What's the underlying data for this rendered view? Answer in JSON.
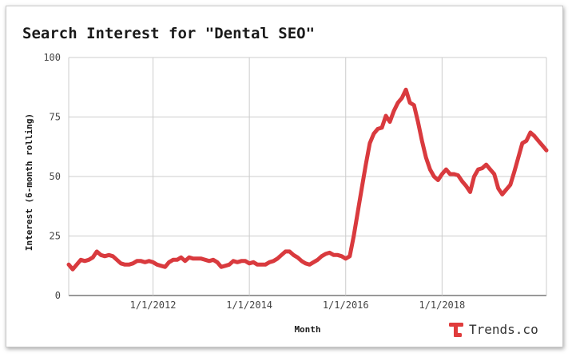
{
  "chart_data": {
    "type": "line",
    "title": "Search Interest for \"Dental SEO\"",
    "xlabel": "Month",
    "ylabel": "Interest (6-month rolling)",
    "ylim": [
      0,
      100
    ],
    "y_ticks": [
      "0",
      "25",
      "50",
      "75",
      "100"
    ],
    "x_ticks": [
      {
        "label": "1/1/2012",
        "x": "2012-01"
      },
      {
        "label": "1/1/2014",
        "x": "2014-01"
      },
      {
        "label": "1/1/2016",
        "x": "2016-01"
      },
      {
        "label": "1/1/2018",
        "x": "2018-01"
      }
    ],
    "xlim": [
      "2010-04",
      "2020-03"
    ],
    "grid": true,
    "legend": "none",
    "line_color": "#d93a3e",
    "x": [
      "2010-04",
      "2010-05",
      "2010-06",
      "2010-07",
      "2010-08",
      "2010-09",
      "2010-10",
      "2010-11",
      "2010-12",
      "2011-01",
      "2011-02",
      "2011-03",
      "2011-04",
      "2011-05",
      "2011-06",
      "2011-07",
      "2011-08",
      "2011-09",
      "2011-10",
      "2011-11",
      "2011-12",
      "2012-01",
      "2012-02",
      "2012-03",
      "2012-04",
      "2012-05",
      "2012-06",
      "2012-07",
      "2012-08",
      "2012-09",
      "2012-10",
      "2012-11",
      "2012-12",
      "2013-01",
      "2013-02",
      "2013-03",
      "2013-04",
      "2013-05",
      "2013-06",
      "2013-07",
      "2013-08",
      "2013-09",
      "2013-10",
      "2013-11",
      "2013-12",
      "2014-01",
      "2014-02",
      "2014-03",
      "2014-04",
      "2014-05",
      "2014-06",
      "2014-07",
      "2014-08",
      "2014-09",
      "2014-10",
      "2014-11",
      "2014-12",
      "2015-01",
      "2015-02",
      "2015-03",
      "2015-04",
      "2015-05",
      "2015-06",
      "2015-07",
      "2015-08",
      "2015-09",
      "2015-10",
      "2015-11",
      "2015-12",
      "2016-01",
      "2016-02",
      "2016-03",
      "2016-04",
      "2016-05",
      "2016-06",
      "2016-07",
      "2016-08",
      "2016-09",
      "2016-10",
      "2016-11",
      "2016-12",
      "2017-01",
      "2017-02",
      "2017-03",
      "2017-04",
      "2017-05",
      "2017-06",
      "2017-07",
      "2017-08",
      "2017-09",
      "2017-10",
      "2017-11",
      "2017-12",
      "2018-01",
      "2018-02",
      "2018-03",
      "2018-04",
      "2018-05",
      "2018-06",
      "2018-07",
      "2018-08",
      "2018-09",
      "2018-10",
      "2018-11",
      "2018-12",
      "2019-01",
      "2019-02",
      "2019-03",
      "2019-04",
      "2019-05",
      "2019-06",
      "2019-07",
      "2019-08",
      "2019-09",
      "2019-10",
      "2019-11",
      "2019-12",
      "2020-01",
      "2020-02",
      "2020-03"
    ],
    "series": [
      {
        "values": [
          13,
          11,
          13,
          15,
          14.5,
          15,
          16,
          18.5,
          17,
          16.5,
          17,
          16.5,
          15,
          13.5,
          13,
          13,
          13.5,
          14.5,
          14.5,
          14,
          14.5,
          14,
          13,
          12.5,
          12,
          14,
          15,
          15,
          16,
          14.5,
          16,
          15.5,
          15.5,
          15.5,
          15,
          14.5,
          15,
          14,
          12,
          12.5,
          13,
          14.5,
          14,
          14.5,
          14.5,
          13.5,
          14,
          13,
          13,
          13,
          14,
          14.5,
          15.5,
          17,
          18.5,
          18.5,
          17,
          16,
          14.5,
          13.5,
          13,
          14,
          15,
          16.5,
          17.5,
          18,
          17,
          17,
          16.5,
          15.5,
          16.5,
          25,
          35,
          45,
          55,
          64,
          68,
          70,
          70.5,
          75.5,
          73,
          77.5,
          81,
          83,
          86.5,
          81,
          80,
          73,
          65,
          58,
          53,
          50,
          48.5,
          51,
          53,
          51,
          51,
          50.5,
          48,
          46,
          43.5,
          50,
          53,
          53.5,
          55,
          53,
          51,
          45,
          42.5,
          44.5,
          46.5,
          52,
          58,
          64,
          65,
          68.5,
          67,
          65,
          63,
          61
        ]
      }
    ]
  },
  "branding": {
    "logo_text": "Trends.co",
    "logo_color": "#e03c3c"
  }
}
